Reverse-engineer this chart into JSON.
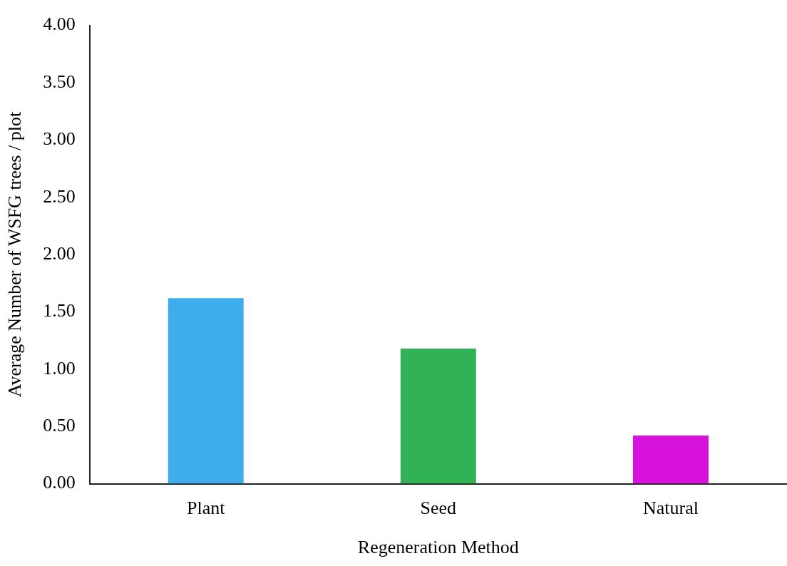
{
  "chart_data": {
    "type": "bar",
    "xlabel": "Regeneration Method",
    "ylabel": "Average Number of WSFG trees / plot",
    "categories": [
      "Plant",
      "Seed",
      "Natural"
    ],
    "values": [
      1.62,
      1.18,
      0.42
    ],
    "colors": [
      "#3fadec",
      "#31b256",
      "#d712dc"
    ],
    "ylim": [
      0,
      4
    ],
    "yticks": [
      {
        "value": 0,
        "label": "0.00"
      },
      {
        "value": 0.5,
        "label": "0.50"
      },
      {
        "value": 1,
        "label": "1.00"
      },
      {
        "value": 1.5,
        "label": "1.50"
      },
      {
        "value": 2,
        "label": "2.00"
      },
      {
        "value": 2.5,
        "label": "2.50"
      },
      {
        "value": 3,
        "label": "3.00"
      },
      {
        "value": 3.5,
        "label": "3.50"
      },
      {
        "value": 4,
        "label": "4.00"
      }
    ],
    "grid": false,
    "legend": false
  }
}
